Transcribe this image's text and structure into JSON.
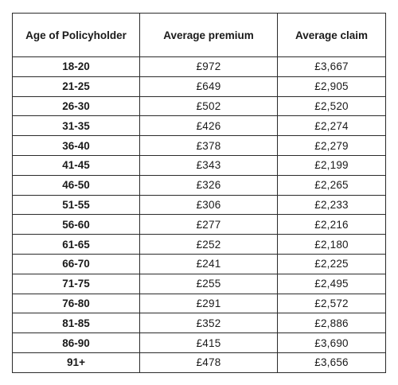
{
  "table": {
    "headers": [
      "Age of Policyholder",
      "Average premium",
      "Average claim"
    ],
    "rows": [
      [
        "18-20",
        "£972",
        "£3,667"
      ],
      [
        "21-25",
        "£649",
        "£2,905"
      ],
      [
        "26-30",
        "£502",
        "£2,520"
      ],
      [
        "31-35",
        "£426",
        "£2,274"
      ],
      [
        "36-40",
        "£378",
        "£2,279"
      ],
      [
        "41-45",
        "£343",
        "£2,199"
      ],
      [
        "46-50",
        "£326",
        "£2,265"
      ],
      [
        "51-55",
        "£306",
        "£2,233"
      ],
      [
        "56-60",
        "£277",
        "£2,216"
      ],
      [
        "61-65",
        "£252",
        "£2,180"
      ],
      [
        "66-70",
        "£241",
        "£2,225"
      ],
      [
        "71-75",
        "£255",
        "£2,495"
      ],
      [
        "76-80",
        "£291",
        "£2,572"
      ],
      [
        "81-85",
        "£352",
        "£2,886"
      ],
      [
        "86-90",
        "£415",
        "£3,690"
      ],
      [
        "91+",
        "£478",
        "£3,656"
      ]
    ]
  }
}
